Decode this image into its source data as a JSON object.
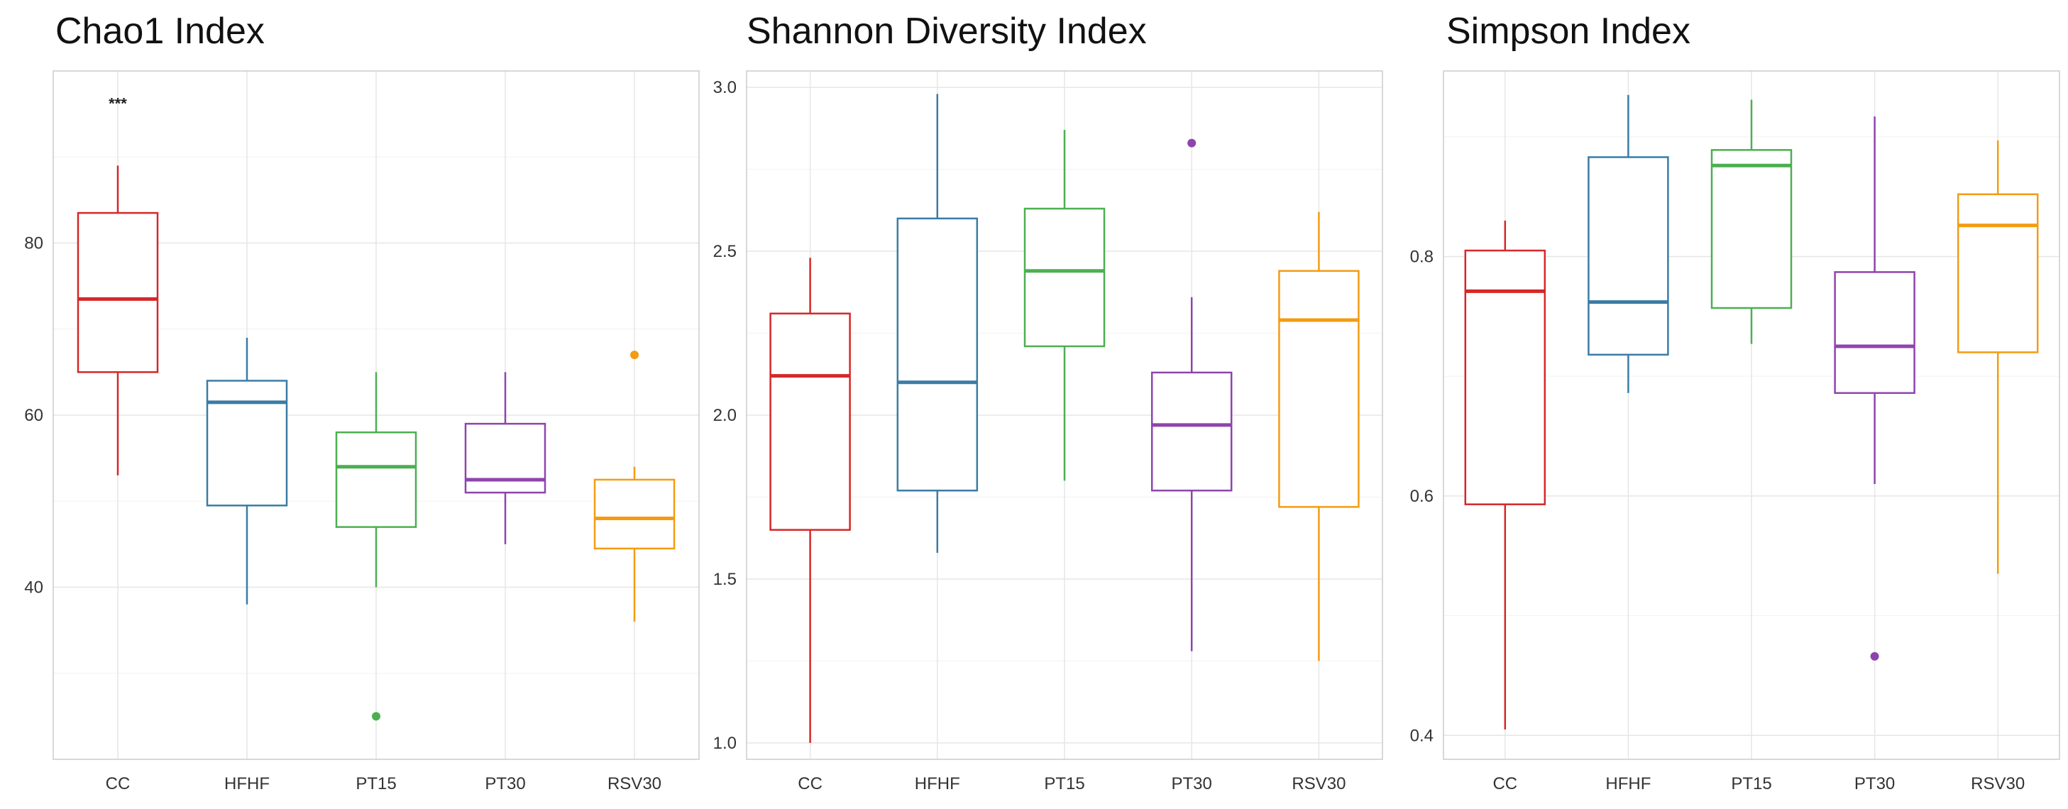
{
  "colors": {
    "CC": "#d62728",
    "HFHF": "#3a7ca5",
    "PT15": "#4caf50",
    "PT30": "#8e44ad",
    "RSV30": "#f39c12",
    "grid": "#e6e6e6",
    "axis": "#cccccc"
  },
  "chart_data": [
    {
      "type": "box",
      "title": "Chao1 Index",
      "xlabel": "",
      "ylabel": "",
      "categories": [
        "CC",
        "HFHF",
        "PT15",
        "PT30",
        "RSV30"
      ],
      "ylim": [
        20,
        100
      ],
      "yticks": [
        40,
        60,
        80
      ],
      "ytick_labels": [
        "40",
        "60",
        "80"
      ],
      "boxes": [
        {
          "group": "CC",
          "min": 53,
          "q1": 65,
          "median": 73.5,
          "q3": 83.5,
          "max": 89,
          "outliers": [],
          "annotation": "***"
        },
        {
          "group": "HFHF",
          "min": 38,
          "q1": 49.5,
          "median": 61.5,
          "q3": 64,
          "max": 69,
          "outliers": []
        },
        {
          "group": "PT15",
          "min": 40,
          "q1": 47,
          "median": 54,
          "q3": 58,
          "max": 65,
          "outliers": [
            25
          ]
        },
        {
          "group": "PT30",
          "min": 45,
          "q1": 51,
          "median": 52.5,
          "q3": 59,
          "max": 65,
          "outliers": []
        },
        {
          "group": "RSV30",
          "min": 36,
          "q1": 44.5,
          "median": 48,
          "q3": 52.5,
          "max": 54,
          "outliers": [
            67
          ]
        }
      ]
    },
    {
      "type": "box",
      "title": "Shannon Diversity Index",
      "xlabel": "",
      "ylabel": "",
      "categories": [
        "CC",
        "HFHF",
        "PT15",
        "PT30",
        "RSV30"
      ],
      "ylim": [
        0.95,
        3.05
      ],
      "yticks": [
        1.0,
        1.5,
        2.0,
        2.5,
        3.0
      ],
      "ytick_labels": [
        "1.0",
        "1.5",
        "2.0",
        "2.5",
        "3.0"
      ],
      "boxes": [
        {
          "group": "CC",
          "min": 1.0,
          "q1": 1.65,
          "median": 2.12,
          "q3": 2.31,
          "max": 2.48,
          "outliers": []
        },
        {
          "group": "HFHF",
          "min": 1.58,
          "q1": 1.77,
          "median": 2.1,
          "q3": 2.6,
          "max": 2.98,
          "outliers": []
        },
        {
          "group": "PT15",
          "min": 1.8,
          "q1": 2.21,
          "median": 2.44,
          "q3": 2.63,
          "max": 2.87,
          "outliers": []
        },
        {
          "group": "PT30",
          "min": 1.28,
          "q1": 1.77,
          "median": 1.97,
          "q3": 2.13,
          "max": 2.36,
          "outliers": [
            2.83
          ]
        },
        {
          "group": "RSV30",
          "min": 1.25,
          "q1": 1.72,
          "median": 2.29,
          "q3": 2.44,
          "max": 2.62,
          "outliers": []
        }
      ]
    },
    {
      "type": "box",
      "title": "Simpson Index",
      "xlabel": "",
      "ylabel": "",
      "categories": [
        "CC",
        "HFHF",
        "PT15",
        "PT30",
        "RSV30"
      ],
      "ylim": [
        0.38,
        0.955
      ],
      "yticks": [
        0.4,
        0.6,
        0.8
      ],
      "ytick_labels": [
        "0.4",
        "0.6",
        "0.8"
      ],
      "boxes": [
        {
          "group": "CC",
          "min": 0.405,
          "q1": 0.593,
          "median": 0.771,
          "q3": 0.805,
          "max": 0.83,
          "outliers": []
        },
        {
          "group": "HFHF",
          "min": 0.686,
          "q1": 0.718,
          "median": 0.762,
          "q3": 0.883,
          "max": 0.935,
          "outliers": []
        },
        {
          "group": "PT15",
          "min": 0.727,
          "q1": 0.757,
          "median": 0.876,
          "q3": 0.889,
          "max": 0.931,
          "outliers": []
        },
        {
          "group": "PT30",
          "min": 0.61,
          "q1": 0.686,
          "median": 0.725,
          "q3": 0.787,
          "max": 0.917,
          "outliers": [
            0.466
          ]
        },
        {
          "group": "RSV30",
          "min": 0.535,
          "q1": 0.72,
          "median": 0.826,
          "q3": 0.852,
          "max": 0.897,
          "outliers": []
        }
      ]
    }
  ]
}
